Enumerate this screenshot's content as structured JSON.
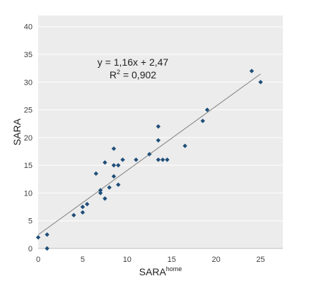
{
  "chart_data": {
    "type": "scatter",
    "xlabel": "SARA",
    "xlabel_sup": "home",
    "ylabel": "SARA",
    "xlim": [
      0,
      27.5
    ],
    "ylim": [
      0,
      42
    ],
    "xticks": [
      0,
      5,
      10,
      15,
      20,
      25
    ],
    "yticks": [
      0,
      5,
      10,
      15,
      20,
      25,
      30,
      35,
      40
    ],
    "grid": "horizontal",
    "background": "#ececec",
    "marker_color": "#1f4e79",
    "trendline": {
      "slope": 1.16,
      "intercept": 2.47,
      "x_range": [
        0,
        25
      ],
      "color": "#7f7f7f"
    },
    "annotation": {
      "equation": "y = 1,16x + 2,47",
      "r2_prefix": "R",
      "r2_sup": "2",
      "r2_value": " = 0,902"
    },
    "points": [
      [
        0,
        2
      ],
      [
        1,
        0
      ],
      [
        1,
        2.5
      ],
      [
        4,
        6
      ],
      [
        5,
        6.5
      ],
      [
        5,
        7.5
      ],
      [
        5.5,
        8
      ],
      [
        6.5,
        13.5
      ],
      [
        7,
        10
      ],
      [
        7,
        10.5
      ],
      [
        7.5,
        9
      ],
      [
        7.5,
        15.5
      ],
      [
        8,
        11
      ],
      [
        8.5,
        13
      ],
      [
        8.5,
        15
      ],
      [
        8.5,
        18
      ],
      [
        9,
        11.5
      ],
      [
        9,
        15
      ],
      [
        9.5,
        16
      ],
      [
        11,
        16
      ],
      [
        12.5,
        17
      ],
      [
        13.5,
        16
      ],
      [
        13.5,
        19.5
      ],
      [
        13.5,
        22
      ],
      [
        14,
        16
      ],
      [
        14.5,
        16
      ],
      [
        16.5,
        18.5
      ],
      [
        18.5,
        23
      ],
      [
        19,
        25
      ],
      [
        24,
        32
      ],
      [
        25,
        30
      ]
    ]
  }
}
